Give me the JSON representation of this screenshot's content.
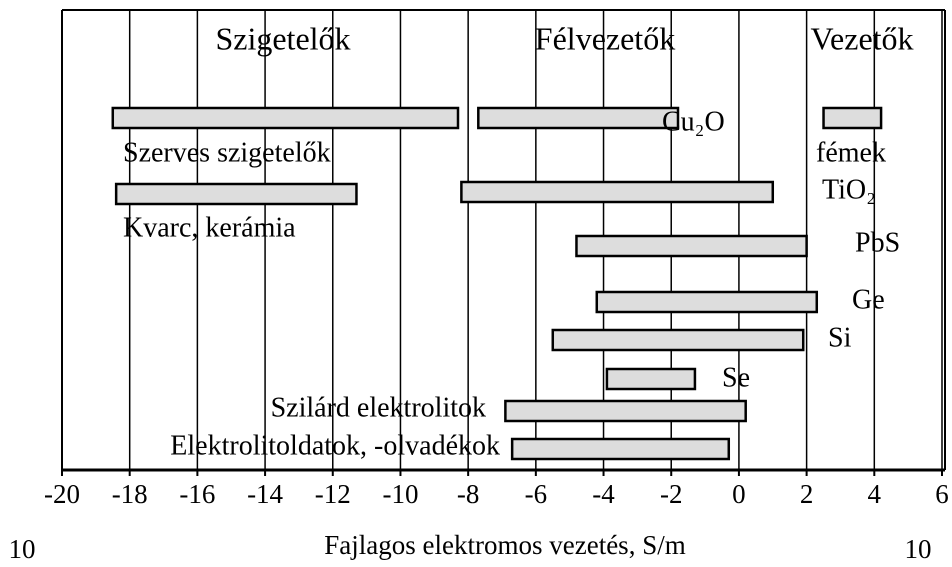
{
  "chart_data": {
    "type": "range_bar",
    "region_labels": [
      "Szigetelők",
      "Félvezetők",
      "Vezetők"
    ],
    "categories": [
      "Szerves szigetelők",
      "Cu₂O",
      "fémek",
      "Kvarc, kerámia",
      "TiO₂",
      "PbS",
      "Ge",
      "Si",
      "Se",
      "Szilárd elektrolitok",
      "Elektrolitoldatok, -olvadékok"
    ],
    "low": [
      -18.5,
      -7.7,
      2.5,
      -18.4,
      -8.2,
      -4.8,
      -4.2,
      -5.5,
      -3.9,
      -6.9,
      -6.7
    ],
    "high": [
      -8.3,
      -1.8,
      4.2,
      -11.3,
      1.0,
      2.0,
      2.3,
      1.9,
      -1.3,
      0.2,
      -0.3
    ],
    "color": "#dddddd",
    "xlim": [
      -20,
      6
    ],
    "xticks": [
      -20,
      -18,
      -16,
      -14,
      -12,
      -10,
      -8,
      -6,
      -4,
      -2,
      0,
      2,
      4,
      6
    ],
    "grid": true,
    "x_label": "Fajlagos elektromos vezetés, S/m",
    "axis_base_labels": [
      "10",
      "10"
    ]
  }
}
